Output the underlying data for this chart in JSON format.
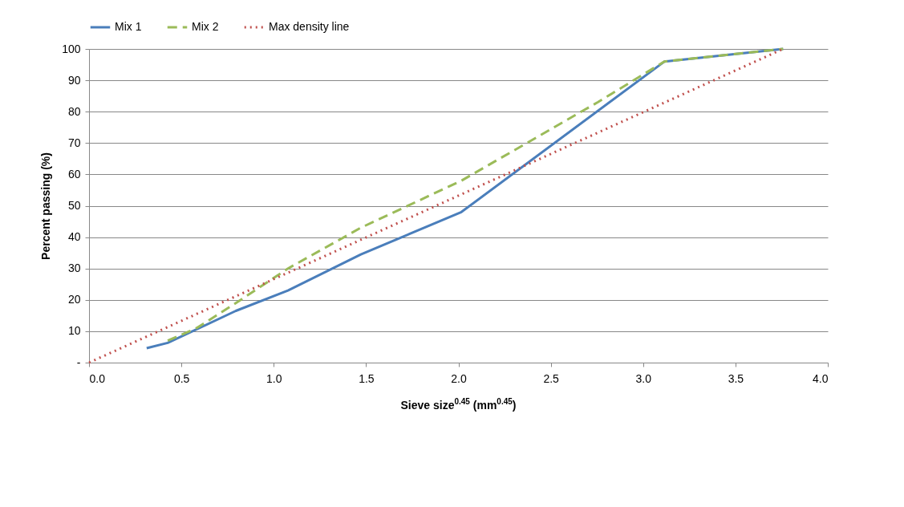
{
  "chart_data": {
    "type": "line",
    "xlabel": "Sieve size$^{0.45}$ (mm$^{0.45}$)",
    "ylabel": "Percent passing (%)",
    "xlim": [
      0,
      4
    ],
    "ylim": [
      0,
      100
    ],
    "xticks": [
      {
        "value": 0,
        "label": "0.0"
      },
      {
        "value": 0.5,
        "label": "0.5"
      },
      {
        "value": 1,
        "label": "1.0"
      },
      {
        "value": 1.5,
        "label": "1.5"
      },
      {
        "value": 2,
        "label": "2.0"
      },
      {
        "value": 2.5,
        "label": "2.5"
      },
      {
        "value": 3,
        "label": "3.0"
      },
      {
        "value": 3.5,
        "label": "3.5"
      },
      {
        "value": 4,
        "label": "4.0"
      }
    ],
    "yticks": [
      {
        "value": 0,
        "label": "-"
      },
      10,
      20,
      30,
      40,
      50,
      60,
      70,
      80,
      90,
      100
    ],
    "grid": "y",
    "legend": "top",
    "marker": "none",
    "series": [
      {
        "name": "Mix 1",
        "color": "#4a7ebb",
        "line_style": "solid",
        "x": [
          0.312,
          0.426,
          0.795,
          1.077,
          1.472,
          2.016,
          3.116,
          3.758
        ],
        "values": [
          4.6,
          6.3,
          16.5,
          23,
          34.5,
          48,
          96,
          100
        ]
      },
      {
        "name": "Mix 2",
        "color": "#9bbb59",
        "line_style": "dashed",
        "x": [
          0.426,
          0.582,
          0.795,
          1.077,
          1.472,
          2.016,
          2.754,
          3.116,
          3.758
        ],
        "values": [
          7,
          11,
          19,
          30,
          43,
          58,
          83,
          96,
          100
        ]
      },
      {
        "name": "Max density line",
        "color": "#c0504d",
        "line_style": "dotted",
        "x": [
          0,
          3.758
        ],
        "values": [
          0,
          100
        ]
      }
    ]
  }
}
